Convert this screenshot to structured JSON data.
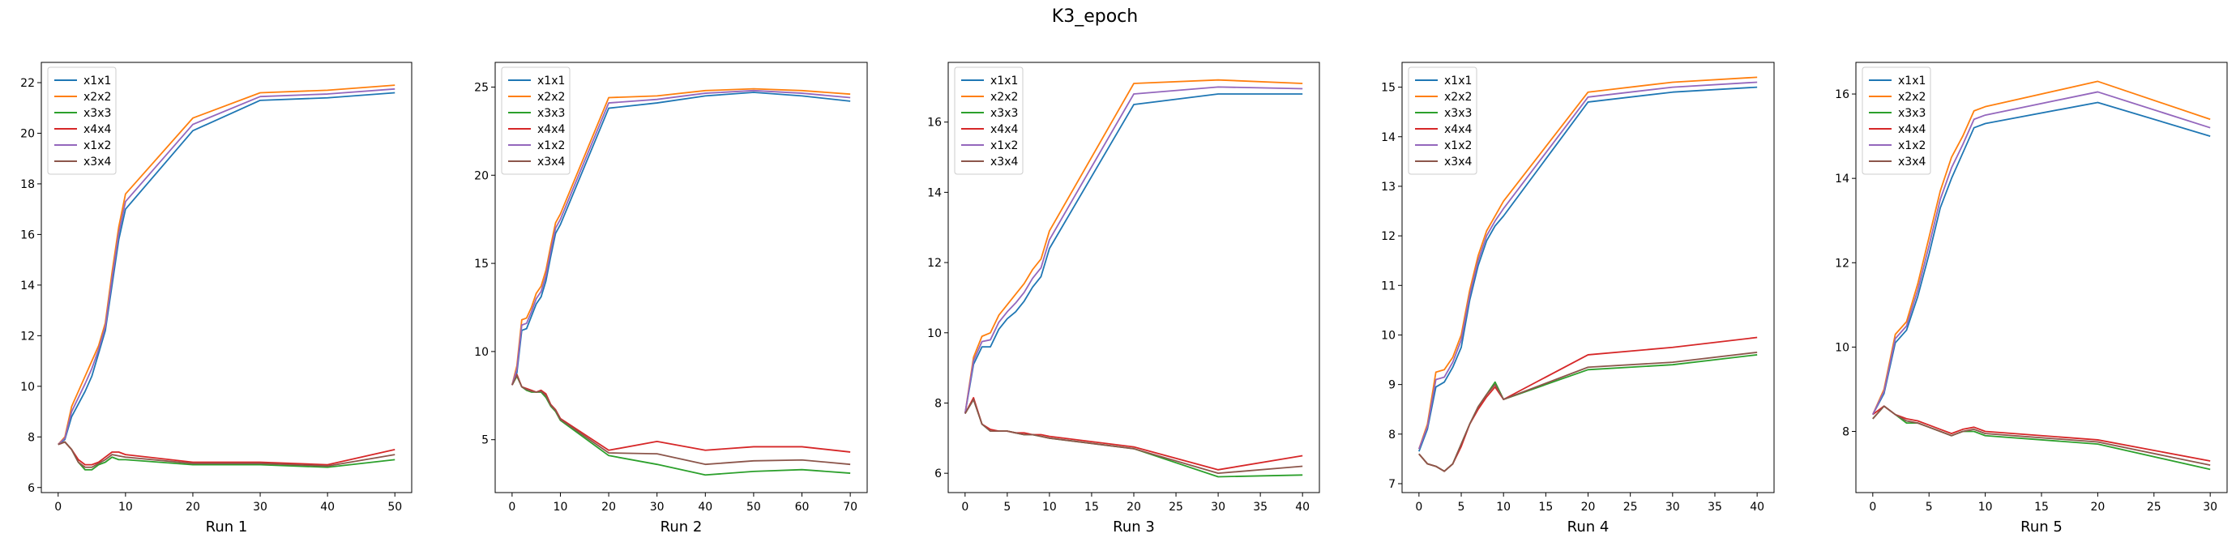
{
  "figure": {
    "title": "K3_epoch"
  },
  "chart_data": [
    {
      "type": "line",
      "title": "",
      "xlabel": "Run 1",
      "ylabel": "",
      "xlim": [
        -2.5,
        52.5
      ],
      "ylim": [
        5.8,
        22.8
      ],
      "xticks": [
        0,
        10,
        20,
        30,
        40,
        50
      ],
      "yticks": [
        6,
        8,
        10,
        12,
        14,
        16,
        18,
        20,
        22
      ],
      "grid": false,
      "legend": "top-left",
      "x": [
        0,
        1,
        2,
        3,
        4,
        5,
        6,
        7,
        8,
        9,
        10,
        20,
        30,
        40,
        50
      ],
      "series": [
        {
          "name": "x1x1",
          "color": "#1f77b4",
          "values": [
            7.7,
            7.9,
            8.8,
            9.3,
            9.8,
            10.4,
            11.3,
            12.2,
            14.0,
            15.8,
            17.0,
            20.1,
            21.3,
            21.4,
            21.6
          ]
        },
        {
          "name": "x2x2",
          "color": "#ff7f0e",
          "values": [
            7.7,
            8.0,
            9.2,
            9.8,
            10.4,
            11.0,
            11.6,
            12.5,
            14.5,
            16.3,
            17.6,
            20.6,
            21.6,
            21.7,
            21.9
          ]
        },
        {
          "name": "x3x3",
          "color": "#2ca02c",
          "values": [
            7.7,
            7.8,
            7.5,
            7.0,
            6.7,
            6.7,
            6.9,
            7.0,
            7.2,
            7.1,
            7.1,
            6.9,
            6.9,
            6.8,
            7.1
          ]
        },
        {
          "name": "x4x4",
          "color": "#d62728",
          "values": [
            7.7,
            7.8,
            7.5,
            7.1,
            6.9,
            6.9,
            7.0,
            7.2,
            7.4,
            7.4,
            7.3,
            7.0,
            7.0,
            6.9,
            7.5
          ]
        },
        {
          "name": "x1x2",
          "color": "#9467bd",
          "values": [
            7.7,
            7.95,
            9.0,
            9.55,
            10.1,
            10.7,
            11.45,
            12.35,
            14.25,
            16.05,
            17.3,
            20.35,
            21.45,
            21.55,
            21.75
          ]
        },
        {
          "name": "x3x4",
          "color": "#8c564b",
          "values": [
            7.7,
            7.8,
            7.5,
            7.0,
            6.8,
            6.8,
            6.95,
            7.1,
            7.3,
            7.25,
            7.2,
            6.95,
            6.95,
            6.85,
            7.3
          ]
        }
      ]
    },
    {
      "type": "line",
      "title": "",
      "xlabel": "Run 2",
      "ylabel": "",
      "xlim": [
        -3.5,
        73.5
      ],
      "ylim": [
        2.0,
        26.4
      ],
      "xticks": [
        0,
        10,
        20,
        30,
        40,
        50,
        60,
        70
      ],
      "yticks": [
        5,
        10,
        15,
        20,
        25
      ],
      "grid": false,
      "legend": "top-left",
      "x": [
        0,
        1,
        2,
        3,
        4,
        5,
        6,
        7,
        8,
        9,
        10,
        20,
        30,
        40,
        50,
        60,
        70
      ],
      "series": [
        {
          "name": "x1x1",
          "color": "#1f77b4",
          "values": [
            8.1,
            8.8,
            11.2,
            11.3,
            12.0,
            12.7,
            13.1,
            14.0,
            15.4,
            16.7,
            17.2,
            23.8,
            24.1,
            24.5,
            24.7,
            24.5,
            24.2
          ]
        },
        {
          "name": "x2x2",
          "color": "#ff7f0e",
          "values": [
            8.1,
            9.2,
            11.8,
            11.9,
            12.5,
            13.3,
            13.7,
            14.6,
            16.0,
            17.3,
            17.8,
            24.4,
            24.5,
            24.8,
            24.9,
            24.8,
            24.6
          ]
        },
        {
          "name": "x3x3",
          "color": "#2ca02c",
          "values": [
            8.1,
            8.6,
            8.0,
            7.8,
            7.7,
            7.7,
            7.7,
            7.4,
            6.9,
            6.6,
            6.1,
            4.1,
            3.6,
            3.0,
            3.2,
            3.3,
            3.1
          ]
        },
        {
          "name": "x4x4",
          "color": "#d62728",
          "values": [
            8.1,
            8.7,
            8.0,
            7.9,
            7.8,
            7.7,
            7.8,
            7.6,
            7.0,
            6.7,
            6.2,
            4.4,
            4.9,
            4.4,
            4.6,
            4.6,
            4.3
          ]
        },
        {
          "name": "x1x2",
          "color": "#9467bd",
          "values": [
            8.1,
            9.0,
            11.5,
            11.6,
            12.25,
            13.0,
            13.4,
            14.3,
            15.7,
            17.0,
            17.5,
            24.1,
            24.3,
            24.65,
            24.8,
            24.65,
            24.4
          ]
        },
        {
          "name": "x3x4",
          "color": "#8c564b",
          "values": [
            8.1,
            8.65,
            8.0,
            7.85,
            7.75,
            7.7,
            7.75,
            7.5,
            6.95,
            6.65,
            6.15,
            4.25,
            4.2,
            3.6,
            3.8,
            3.85,
            3.6
          ]
        }
      ]
    },
    {
      "type": "line",
      "title": "",
      "xlabel": "Run 3",
      "ylabel": "",
      "xlim": [
        -2.0,
        42.0
      ],
      "ylim": [
        5.45,
        17.7
      ],
      "xticks": [
        0,
        5,
        10,
        15,
        20,
        25,
        30,
        35,
        40
      ],
      "yticks": [
        6,
        8,
        10,
        12,
        14,
        16
      ],
      "grid": false,
      "legend": "top-left",
      "x": [
        0,
        1,
        2,
        3,
        4,
        5,
        6,
        7,
        8,
        9,
        10,
        20,
        30,
        40
      ],
      "series": [
        {
          "name": "x1x1",
          "color": "#1f77b4",
          "values": [
            7.7,
            9.1,
            9.6,
            9.6,
            10.1,
            10.4,
            10.6,
            10.9,
            11.3,
            11.6,
            12.4,
            16.5,
            16.8,
            16.8
          ]
        },
        {
          "name": "x2x2",
          "color": "#ff7f0e",
          "values": [
            7.7,
            9.3,
            9.9,
            10.0,
            10.5,
            10.8,
            11.1,
            11.4,
            11.8,
            12.1,
            12.9,
            17.1,
            17.2,
            17.1
          ]
        },
        {
          "name": "x3x3",
          "color": "#2ca02c",
          "values": [
            7.7,
            8.1,
            7.4,
            7.2,
            7.2,
            7.2,
            7.15,
            7.1,
            7.1,
            7.05,
            7.0,
            6.7,
            5.9,
            5.95
          ]
        },
        {
          "name": "x4x4",
          "color": "#d62728",
          "values": [
            7.7,
            8.15,
            7.4,
            7.25,
            7.2,
            7.2,
            7.15,
            7.15,
            7.1,
            7.1,
            7.05,
            6.75,
            6.1,
            6.5
          ]
        },
        {
          "name": "x1x2",
          "color": "#9467bd",
          "values": [
            7.7,
            9.2,
            9.75,
            9.8,
            10.3,
            10.6,
            10.85,
            11.15,
            11.55,
            11.85,
            12.65,
            16.8,
            17.0,
            16.95
          ]
        },
        {
          "name": "x3x4",
          "color": "#8c564b",
          "values": [
            7.7,
            8.1,
            7.4,
            7.2,
            7.2,
            7.2,
            7.15,
            7.1,
            7.1,
            7.05,
            7.0,
            6.7,
            6.0,
            6.2
          ]
        }
      ]
    },
    {
      "type": "line",
      "title": "",
      "xlabel": "Run 4",
      "ylabel": "",
      "xlim": [
        -2.0,
        42.0
      ],
      "ylim": [
        6.82,
        15.5
      ],
      "xticks": [
        0,
        5,
        10,
        15,
        20,
        25,
        30,
        35,
        40
      ],
      "yticks": [
        7,
        8,
        9,
        10,
        11,
        12,
        13,
        14,
        15
      ],
      "grid": false,
      "legend": "top-left",
      "x": [
        0,
        1,
        2,
        3,
        4,
        5,
        6,
        7,
        8,
        9,
        10,
        20,
        30,
        40
      ],
      "series": [
        {
          "name": "x1x1",
          "color": "#1f77b4",
          "values": [
            7.65,
            8.1,
            8.95,
            9.05,
            9.35,
            9.75,
            10.7,
            11.4,
            11.9,
            12.2,
            12.4,
            14.7,
            14.9,
            15.0
          ]
        },
        {
          "name": "x2x2",
          "color": "#ff7f0e",
          "values": [
            7.7,
            8.2,
            9.25,
            9.3,
            9.55,
            10.0,
            10.9,
            11.6,
            12.1,
            12.4,
            12.7,
            14.9,
            15.1,
            15.2
          ]
        },
        {
          "name": "x3x3",
          "color": "#2ca02c",
          "values": [
            7.6,
            7.4,
            7.35,
            7.25,
            7.4,
            7.8,
            8.2,
            8.55,
            8.8,
            9.05,
            8.7,
            9.3,
            9.4,
            9.6
          ]
        },
        {
          "name": "x4x4",
          "color": "#d62728",
          "values": [
            7.6,
            7.4,
            7.35,
            7.25,
            7.4,
            7.75,
            8.2,
            8.5,
            8.75,
            8.95,
            8.7,
            9.6,
            9.75,
            9.95
          ]
        },
        {
          "name": "x1x2",
          "color": "#9467bd",
          "values": [
            7.7,
            8.15,
            9.1,
            9.15,
            9.45,
            9.9,
            10.8,
            11.5,
            12.0,
            12.3,
            12.55,
            14.8,
            15.0,
            15.1
          ]
        },
        {
          "name": "x3x4",
          "color": "#8c564b",
          "values": [
            7.6,
            7.4,
            7.35,
            7.25,
            7.4,
            7.8,
            8.2,
            8.55,
            8.8,
            9.0,
            8.7,
            9.35,
            9.45,
            9.65
          ]
        }
      ]
    },
    {
      "type": "line",
      "title": "",
      "xlabel": "Run 5",
      "ylabel": "",
      "xlim": [
        -1.5,
        31.5
      ],
      "ylim": [
        6.55,
        16.75
      ],
      "xticks": [
        0,
        5,
        10,
        15,
        20,
        25,
        30
      ],
      "yticks": [
        8,
        10,
        12,
        14,
        16
      ],
      "grid": false,
      "legend": "top-left",
      "x": [
        0,
        1,
        2,
        3,
        4,
        5,
        6,
        7,
        8,
        9,
        10,
        20,
        30
      ],
      "series": [
        {
          "name": "x1x1",
          "color": "#1f77b4",
          "values": [
            8.4,
            8.9,
            10.1,
            10.4,
            11.2,
            12.2,
            13.3,
            14.0,
            14.6,
            15.2,
            15.3,
            15.8,
            15.0
          ]
        },
        {
          "name": "x2x2",
          "color": "#ff7f0e",
          "values": [
            8.4,
            9.0,
            10.3,
            10.6,
            11.5,
            12.6,
            13.7,
            14.5,
            15.0,
            15.6,
            15.7,
            16.3,
            15.4
          ]
        },
        {
          "name": "x3x3",
          "color": "#2ca02c",
          "values": [
            8.3,
            8.6,
            8.4,
            8.2,
            8.2,
            8.1,
            8.0,
            7.9,
            8.0,
            8.0,
            7.9,
            7.7,
            7.1
          ]
        },
        {
          "name": "x4x4",
          "color": "#d62728",
          "values": [
            8.4,
            8.6,
            8.4,
            8.3,
            8.25,
            8.15,
            8.05,
            7.95,
            8.05,
            8.1,
            8.0,
            7.8,
            7.3
          ]
        },
        {
          "name": "x1x2",
          "color": "#9467bd",
          "values": [
            8.4,
            8.95,
            10.2,
            10.5,
            11.35,
            12.4,
            13.5,
            14.25,
            14.8,
            15.4,
            15.5,
            16.05,
            15.2
          ]
        },
        {
          "name": "x3x4",
          "color": "#8c564b",
          "values": [
            8.3,
            8.6,
            8.4,
            8.25,
            8.2,
            8.1,
            8.0,
            7.9,
            8.0,
            8.05,
            7.95,
            7.75,
            7.2
          ]
        }
      ]
    }
  ]
}
